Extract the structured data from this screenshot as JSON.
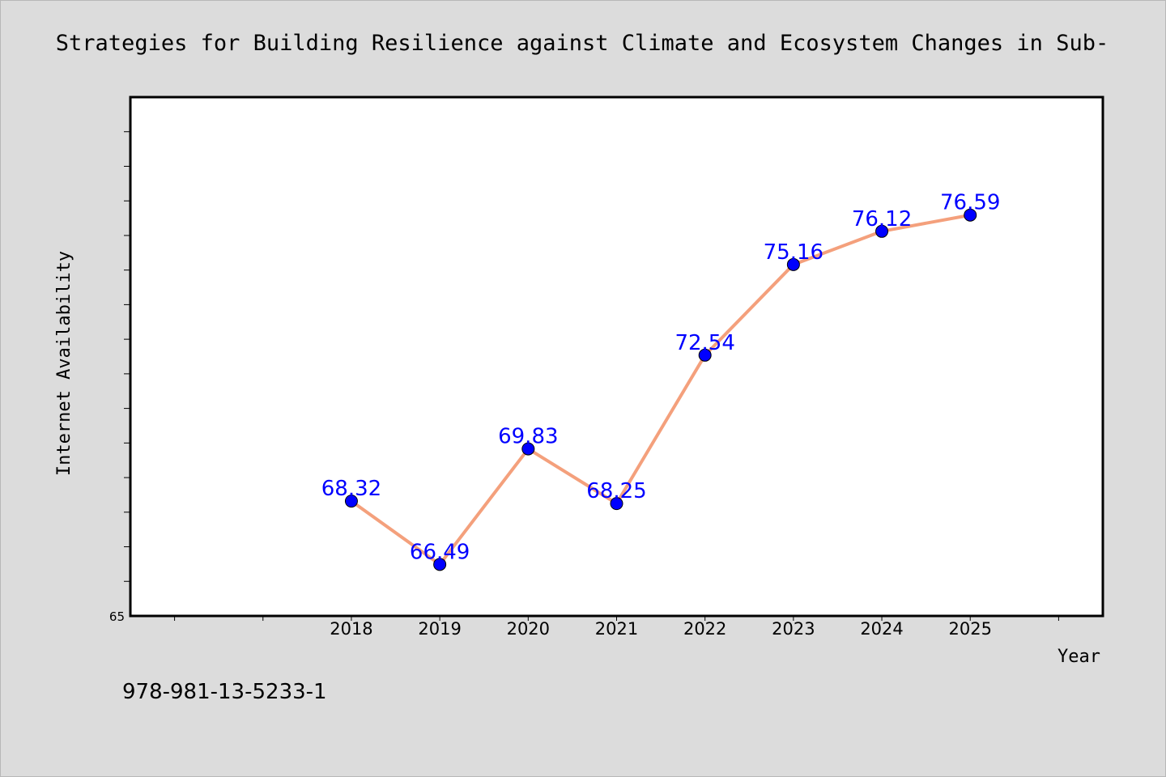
{
  "chart_data": {
    "type": "line",
    "title": "Strategies for Building Resilience against Climate and Ecosystem Changes in Sub-",
    "xlabel": "Year",
    "ylabel": "Internet Availability",
    "x": [
      "2018",
      "2019",
      "2020",
      "2021",
      "2022",
      "2023",
      "2024",
      "2025"
    ],
    "xlim": [
      2015.5,
      2026.5
    ],
    "ylim": [
      65,
      80
    ],
    "y_tick_labels": [
      "65"
    ],
    "series": [
      {
        "values": [
          68.32,
          66.49,
          69.83,
          68.25,
          72.54,
          75.16,
          76.12,
          76.59
        ],
        "data_labels": [
          "68.32",
          "66.49",
          "69.83",
          "68.25",
          "72.54",
          "75.16",
          "76.12",
          "76.59"
        ]
      }
    ],
    "grid": false,
    "line_color": "#f4a07c",
    "marker_color": "#0000ff",
    "label_color": "#0000ff"
  },
  "footnote": "978-981-13-5233-1"
}
